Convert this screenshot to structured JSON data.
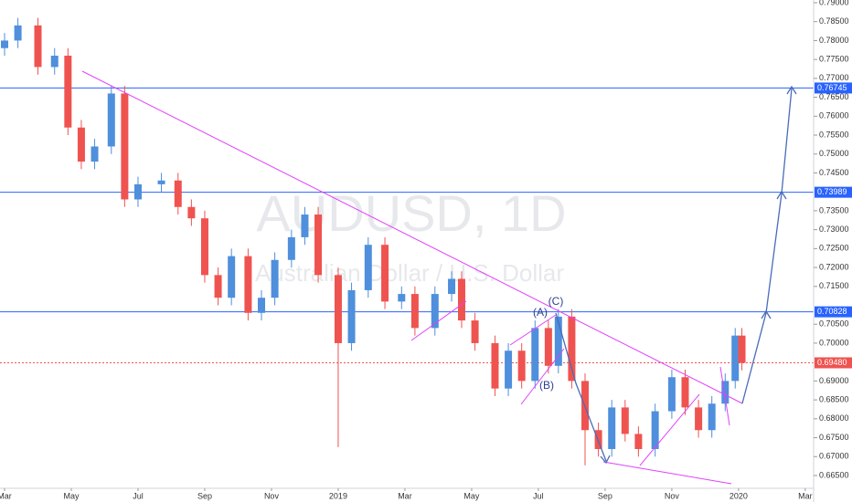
{
  "chart_data": {
    "type": "candlestick",
    "title": "AUDUSD, 1D",
    "subtitle": "Australian Dollar / U.S. Dollar",
    "annotations": [
      "(A)",
      "(B)",
      "(C)"
    ],
    "up_color": "#4f8fdc",
    "down_color": "#ef5350",
    "x": [
      0,
      0.4,
      1,
      1.5,
      1.9,
      2.3,
      2.7,
      3.2,
      3.6,
      4,
      4.7,
      5.2,
      5.6,
      6,
      6.4,
      6.8,
      7.3,
      7.7,
      8.1,
      8.6,
      9,
      9.4,
      10,
      10.4,
      10.9,
      11.4,
      11.9,
      12.3,
      12.9,
      13.4,
      13.7,
      14.1,
      14.7,
      15.1,
      15.5,
      15.9,
      16.3,
      16.6,
      17,
      17.4,
      17.8,
      18.2,
      18.6,
      19,
      19.5,
      20,
      20.4,
      20.8,
      21.2,
      21.6,
      21.9,
      22.1
    ],
    "open": [
      0.778,
      0.78,
      0.784,
      0.773,
      0.776,
      0.757,
      0.748,
      0.752,
      0.766,
      0.738,
      0.742,
      0.743,
      0.736,
      0.733,
      0.718,
      0.712,
      0.723,
      0.708,
      0.712,
      0.722,
      0.728,
      0.734,
      0.718,
      0.7,
      0.714,
      0.726,
      0.711,
      0.713,
      0.704,
      0.713,
      0.717,
      0.706,
      0.7,
      0.688,
      0.698,
      0.69,
      0.704,
      0.694,
      0.707,
      0.69,
      0.677,
      0.672,
      0.683,
      0.676,
      0.672,
      0.682,
      0.691,
      0.683,
      0.677,
      0.684,
      0.69,
      0.702
    ],
    "high": [
      0.782,
      0.786,
      0.786,
      0.778,
      0.778,
      0.759,
      0.754,
      0.768,
      0.768,
      0.744,
      0.745,
      0.745,
      0.738,
      0.735,
      0.72,
      0.725,
      0.725,
      0.714,
      0.724,
      0.73,
      0.736,
      0.736,
      0.72,
      0.716,
      0.728,
      0.728,
      0.715,
      0.715,
      0.715,
      0.719,
      0.719,
      0.708,
      0.702,
      0.7,
      0.7,
      0.706,
      0.706,
      0.709,
      0.709,
      0.692,
      0.679,
      0.685,
      0.685,
      0.678,
      0.684,
      0.693,
      0.693,
      0.685,
      0.686,
      0.692,
      0.704,
      0.704
    ],
    "low": [
      0.776,
      0.778,
      0.771,
      0.771,
      0.755,
      0.746,
      0.746,
      0.75,
      0.736,
      0.736,
      0.74,
      0.734,
      0.731,
      0.716,
      0.71,
      0.71,
      0.706,
      0.706,
      0.71,
      0.72,
      0.726,
      0.716,
      0.6725,
      0.698,
      0.712,
      0.709,
      0.709,
      0.702,
      0.702,
      0.711,
      0.704,
      0.698,
      0.686,
      0.686,
      0.688,
      0.688,
      0.692,
      0.692,
      0.688,
      0.6677,
      0.67,
      0.67,
      0.674,
      0.67,
      0.67,
      0.68,
      0.681,
      0.675,
      0.675,
      0.682,
      0.688,
      0.6928
    ],
    "close": [
      0.78,
      0.784,
      0.773,
      0.776,
      0.757,
      0.748,
      0.752,
      0.766,
      0.738,
      0.742,
      0.743,
      0.736,
      0.733,
      0.718,
      0.712,
      0.723,
      0.708,
      0.712,
      0.722,
      0.728,
      0.734,
      0.718,
      0.7,
      0.714,
      0.726,
      0.711,
      0.713,
      0.704,
      0.713,
      0.717,
      0.706,
      0.7,
      0.688,
      0.698,
      0.69,
      0.704,
      0.694,
      0.707,
      0.69,
      0.677,
      0.672,
      0.683,
      0.676,
      0.672,
      0.682,
      0.691,
      0.683,
      0.677,
      0.684,
      0.69,
      0.702,
      0.6948
    ],
    "levels": [
      {
        "value": 0.76745,
        "color": "#2962ff"
      },
      {
        "value": 0.73989,
        "color": "#2962ff"
      },
      {
        "value": 0.70828,
        "color": "#2962ff"
      },
      {
        "value": 0.6948,
        "label": "0.69480",
        "color": "#ef5350"
      }
    ],
    "xlim": [
      -0.137,
      24.25
    ],
    "xticks": [
      {
        "value": 0,
        "label": "Mar"
      },
      {
        "value": 2,
        "label": "May"
      },
      {
        "value": 4,
        "label": "Jul"
      },
      {
        "value": 6,
        "label": "Sep"
      },
      {
        "value": 8,
        "label": "Nov"
      },
      {
        "value": 10,
        "label": "2019"
      },
      {
        "value": 12,
        "label": "Mar"
      },
      {
        "value": 14,
        "label": "May"
      },
      {
        "value": 16,
        "label": "Jul"
      },
      {
        "value": 18,
        "label": "Sep"
      },
      {
        "value": 20,
        "label": "Nov"
      },
      {
        "value": 22,
        "label": "2020"
      },
      {
        "value": 24,
        "label": "Mar"
      }
    ],
    "ylim": [
      0.66162,
      0.79072
    ],
    "yticks": [
      {
        "value": 0.79,
        "label": "0.79000"
      },
      {
        "value": 0.785,
        "label": "0.78500"
      },
      {
        "value": 0.78,
        "label": "0.78000"
      },
      {
        "value": 0.775,
        "label": "0.77500"
      },
      {
        "value": 0.77,
        "label": "0.77000"
      },
      {
        "value": 0.765,
        "label": "0.76500"
      },
      {
        "value": 0.76,
        "label": "0.76000"
      },
      {
        "value": 0.755,
        "label": "0.75500"
      },
      {
        "value": 0.75,
        "label": "0.75000"
      },
      {
        "value": 0.745,
        "label": "0.74500"
      },
      {
        "value": 0.735,
        "label": "0.73500"
      },
      {
        "value": 0.73,
        "label": "0.73000"
      },
      {
        "value": 0.725,
        "label": "0.72500"
      },
      {
        "value": 0.72,
        "label": "0.72000"
      },
      {
        "value": 0.715,
        "label": "0.71500"
      },
      {
        "value": 0.705,
        "label": "0.70500"
      },
      {
        "value": 0.7,
        "label": "0.70000"
      },
      {
        "value": 0.69,
        "label": "0.69000"
      },
      {
        "value": 0.685,
        "label": "0.68500"
      },
      {
        "value": 0.68,
        "label": "0.68000"
      },
      {
        "value": 0.675,
        "label": "0.67500"
      },
      {
        "value": 0.67,
        "label": "0.67000"
      },
      {
        "value": 0.665,
        "label": "0.66500"
      }
    ]
  }
}
